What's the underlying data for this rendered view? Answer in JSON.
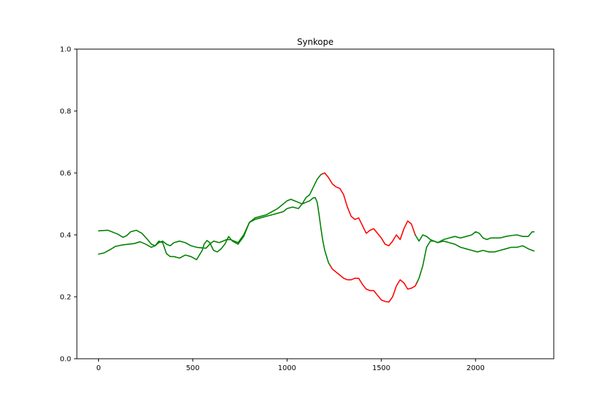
{
  "chart_data": {
    "type": "line",
    "title": "Synkope",
    "xlabel": "",
    "ylabel": "",
    "xlim": [
      -115,
      2415
    ],
    "ylim": [
      0.0,
      1.0
    ],
    "xticks": [
      0,
      500,
      1000,
      1500,
      2000
    ],
    "yticks": [
      0.0,
      0.2,
      0.4,
      0.6,
      0.8,
      1.0
    ],
    "xtick_labels": [
      "0",
      "500",
      "1000",
      "1500",
      "2000"
    ],
    "ytick_labels": [
      "0.0",
      "0.2",
      "0.4",
      "0.6",
      "0.8",
      "1.0"
    ],
    "grid": false,
    "colors": {
      "normal": "#008000",
      "alert": "#ff0000"
    },
    "series": [
      {
        "color_segments": [
          {
            "from": 0,
            "to": 1185,
            "color": "#008000"
          },
          {
            "from": 1185,
            "to": 1680,
            "color": "#ff0000"
          },
          {
            "from": 1680,
            "to": 2310,
            "color": "#008000"
          }
        ],
        "x": [
          0,
          50,
          100,
          130,
          150,
          170,
          200,
          230,
          260,
          280,
          300,
          320,
          340,
          360,
          380,
          400,
          430,
          460,
          490,
          520,
          550,
          570,
          590,
          610,
          640,
          660,
          680,
          700,
          720,
          740,
          770,
          800,
          830,
          860,
          890,
          920,
          950,
          980,
          1000,
          1020,
          1040,
          1060,
          1080,
          1100,
          1120,
          1140,
          1160,
          1180,
          1200,
          1220,
          1240,
          1260,
          1280,
          1300,
          1320,
          1340,
          1360,
          1380,
          1400,
          1420,
          1440,
          1460,
          1480,
          1500,
          1520,
          1540,
          1560,
          1580,
          1600,
          1620,
          1640,
          1660,
          1680,
          1700,
          1720,
          1740,
          1760,
          1780,
          1800,
          1830,
          1860,
          1890,
          1920,
          1950,
          1980,
          2000,
          2020,
          2040,
          2060,
          2080,
          2100,
          2130,
          2160,
          2190,
          2220,
          2250,
          2280,
          2300,
          2310
        ],
        "y": [
          0.413,
          0.415,
          0.403,
          0.392,
          0.398,
          0.41,
          0.415,
          0.405,
          0.385,
          0.37,
          0.365,
          0.375,
          0.38,
          0.37,
          0.365,
          0.375,
          0.38,
          0.375,
          0.365,
          0.36,
          0.358,
          0.357,
          0.37,
          0.38,
          0.375,
          0.38,
          0.385,
          0.385,
          0.38,
          0.375,
          0.4,
          0.44,
          0.455,
          0.46,
          0.465,
          0.475,
          0.485,
          0.5,
          0.51,
          0.515,
          0.51,
          0.505,
          0.5,
          0.52,
          0.53,
          0.555,
          0.58,
          0.595,
          0.6,
          0.585,
          0.565,
          0.555,
          0.55,
          0.53,
          0.49,
          0.46,
          0.45,
          0.455,
          0.43,
          0.405,
          0.415,
          0.42,
          0.405,
          0.39,
          0.37,
          0.365,
          0.38,
          0.4,
          0.385,
          0.42,
          0.445,
          0.435,
          0.4,
          0.38,
          0.4,
          0.395,
          0.385,
          0.38,
          0.375,
          0.385,
          0.39,
          0.395,
          0.39,
          0.395,
          0.4,
          0.41,
          0.405,
          0.39,
          0.385,
          0.39,
          0.39,
          0.39,
          0.395,
          0.398,
          0.4,
          0.395,
          0.395,
          0.41,
          0.41
        ]
      },
      {
        "color_segments": [
          {
            "from": 0,
            "to": 1230,
            "color": "#008000"
          },
          {
            "from": 1230,
            "to": 1690,
            "color": "#ff0000"
          },
          {
            "from": 1690,
            "to": 2310,
            "color": "#008000"
          }
        ],
        "x": [
          0,
          30,
          60,
          90,
          130,
          160,
          190,
          220,
          250,
          280,
          300,
          320,
          340,
          360,
          380,
          400,
          430,
          460,
          490,
          520,
          550,
          560,
          575,
          590,
          610,
          630,
          650,
          670,
          690,
          710,
          740,
          770,
          800,
          830,
          860,
          890,
          920,
          950,
          980,
          1000,
          1030,
          1060,
          1080,
          1100,
          1120,
          1140,
          1150,
          1160,
          1170,
          1180,
          1190,
          1200,
          1220,
          1240,
          1260,
          1280,
          1300,
          1320,
          1340,
          1360,
          1380,
          1400,
          1420,
          1440,
          1460,
          1480,
          1500,
          1520,
          1540,
          1560,
          1580,
          1600,
          1620,
          1640,
          1660,
          1680,
          1700,
          1720,
          1740,
          1760,
          1780,
          1800,
          1830,
          1860,
          1890,
          1920,
          1950,
          1980,
          2010,
          2040,
          2070,
          2100,
          2130,
          2160,
          2190,
          2220,
          2250,
          2280,
          2310
        ],
        "y": [
          0.338,
          0.342,
          0.352,
          0.363,
          0.368,
          0.37,
          0.372,
          0.378,
          0.37,
          0.36,
          0.365,
          0.38,
          0.375,
          0.34,
          0.33,
          0.33,
          0.325,
          0.335,
          0.33,
          0.32,
          0.35,
          0.37,
          0.382,
          0.375,
          0.35,
          0.345,
          0.355,
          0.37,
          0.395,
          0.38,
          0.37,
          0.395,
          0.44,
          0.45,
          0.455,
          0.46,
          0.465,
          0.47,
          0.475,
          0.485,
          0.49,
          0.485,
          0.5,
          0.505,
          0.51,
          0.52,
          0.52,
          0.505,
          0.465,
          0.42,
          0.38,
          0.35,
          0.31,
          0.29,
          0.28,
          0.27,
          0.26,
          0.255,
          0.255,
          0.26,
          0.26,
          0.24,
          0.225,
          0.22,
          0.22,
          0.205,
          0.19,
          0.185,
          0.183,
          0.2,
          0.235,
          0.255,
          0.245,
          0.225,
          0.228,
          0.235,
          0.26,
          0.3,
          0.36,
          0.38,
          0.38,
          0.375,
          0.38,
          0.375,
          0.37,
          0.36,
          0.355,
          0.35,
          0.345,
          0.35,
          0.345,
          0.345,
          0.35,
          0.355,
          0.36,
          0.36,
          0.365,
          0.355,
          0.348
        ]
      }
    ]
  }
}
